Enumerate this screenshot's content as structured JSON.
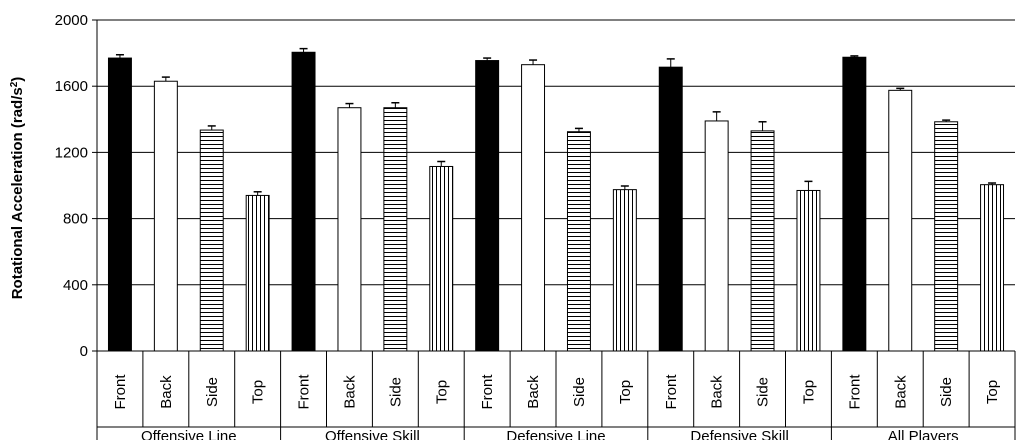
{
  "chart_data": {
    "type": "bar",
    "ylabel": "Rotational Acceleration (rad/s",
    "ylabel_superscript": "2",
    "ylabel_suffix": ")",
    "ylim": [
      0,
      2000
    ],
    "yticks": [
      "0",
      "400",
      "800",
      "1200",
      "1600",
      "2000"
    ],
    "grid": true,
    "categories": [
      "Front",
      "Back",
      "Side",
      "Top"
    ],
    "groups": [
      {
        "name": "Offensive Line",
        "values": [
          1770,
          1630,
          1335,
          940
        ],
        "errors": [
          20,
          25,
          25,
          22
        ]
      },
      {
        "name": "Offensive Skill",
        "values": [
          1805,
          1470,
          1470,
          1115
        ],
        "errors": [
          22,
          25,
          30,
          30
        ]
      },
      {
        "name": "Defensive Line",
        "values": [
          1755,
          1730,
          1325,
          975
        ],
        "errors": [
          15,
          28,
          20,
          22
        ]
      },
      {
        "name": "Defensive Skill",
        "values": [
          1715,
          1390,
          1330,
          970
        ],
        "errors": [
          50,
          55,
          55,
          55
        ]
      },
      {
        "name": "All Players",
        "values": [
          1775,
          1575,
          1385,
          1005
        ],
        "errors": [
          8,
          12,
          10,
          10
        ]
      }
    ],
    "bar_styles": [
      "solid-black",
      "white",
      "horizontal-stripes",
      "vertical-stripes"
    ]
  }
}
